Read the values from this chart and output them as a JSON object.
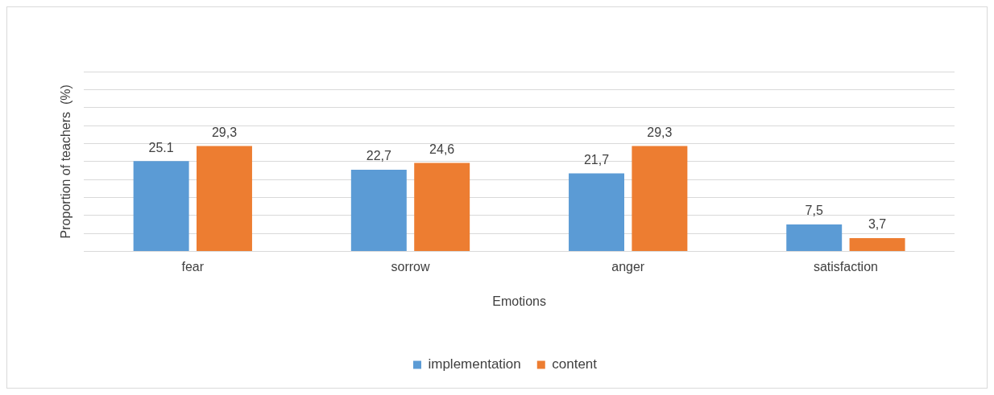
{
  "chart_data": {
    "type": "bar",
    "xlabel": "Emotions",
    "ylabel": "Proportion of teachers  (%)",
    "categories": [
      "fear",
      "sorrow",
      "anger",
      "satisfaction"
    ],
    "series": [
      {
        "name": "implementation",
        "color": "#5b9bd5",
        "values": [
          25.1,
          22.7,
          21.7,
          7.5
        ],
        "value_labels": [
          "25.1",
          "22,7",
          "21,7",
          "7,5"
        ]
      },
      {
        "name": "content",
        "color": "#ed7d31",
        "values": [
          29.3,
          24.6,
          29.3,
          3.7
        ],
        "value_labels": [
          "29,3",
          "24,6",
          "29,3",
          "3,7"
        ]
      }
    ],
    "ylim": [
      0,
      50
    ],
    "yticks": [
      {
        "value": 0,
        "label": null
      },
      {
        "value": 5,
        "label": null
      },
      {
        "value": 10,
        "label": null
      },
      {
        "value": 15,
        "label": null
      },
      {
        "value": 20,
        "label": null
      },
      {
        "value": 25,
        "label": null
      },
      {
        "value": 30,
        "label": null
      },
      {
        "value": 35,
        "label": null
      },
      {
        "value": 40,
        "label": null
      },
      {
        "value": 45,
        "label": null
      },
      {
        "value": 50,
        "label": null
      }
    ],
    "grid": "y",
    "tick_labels": "x",
    "legend": "bottom"
  }
}
